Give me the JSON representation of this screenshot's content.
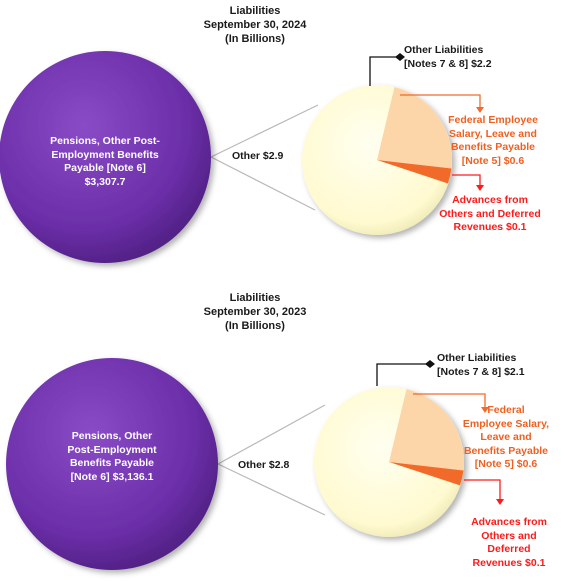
{
  "colors": {
    "purple": "#6b2ea8",
    "cream": "#fffdd8",
    "peach": "#fcd5a8",
    "orange": "#f26a2a",
    "red": "#ff1a1a",
    "connector_line": "#b8b8b8"
  },
  "chart_data": [
    {
      "type": "pie",
      "title": "Liabilities",
      "subtitle": "September 30, 2024",
      "unit_note": "(In Billions)",
      "main_slice": {
        "label_line1": "Pensions, Other Post-",
        "label_line2": "Employment Benefits",
        "label_line3": "Payable [Note 6]",
        "label_line4": "$3,307.7",
        "value": 3307.7
      },
      "other_label": "Other $2.9",
      "other_value": 2.9,
      "slices": [
        {
          "name": "Other Liabilities [Notes 7 & 8]",
          "value": 2.2,
          "line1": "Other Liabilities",
          "line2": "[Notes 7 & 8] $2.2"
        },
        {
          "name": "Federal Employee Salary, Leave and Benefits Payable [Note 5]",
          "value": 0.6,
          "line1": "Federal Employee",
          "line2": "Salary, Leave and",
          "line3": "Benefits Payable",
          "line4": "[Note 5] $0.6"
        },
        {
          "name": "Advances from Others and Deferred Revenues",
          "value": 0.1,
          "line1": "Advances from",
          "line2": "Others and Deferred",
          "line3": "Revenues $0.1"
        }
      ]
    },
    {
      "type": "pie",
      "title": "Liabilities",
      "subtitle": "September 30, 2023",
      "unit_note": "(In Billions)",
      "main_slice": {
        "label_line1": "Pensions, Other",
        "label_line2": "Post-Employment",
        "label_line3": "Benefits Payable",
        "label_line4": "[Note 6] $3,136.1",
        "value": 3136.1
      },
      "other_label": "Other $2.8",
      "other_value": 2.8,
      "slices": [
        {
          "name": "Other Liabilities [Notes 7 & 8]",
          "value": 2.1,
          "line1": "Other Liabilities",
          "line2": "[Notes 7 & 8] $2.1"
        },
        {
          "name": "Federal Employee Salary, Leave and Benefits Payable [Note 5]",
          "value": 0.6,
          "line1": "Federal",
          "line2": "Employee Salary,",
          "line3": "Leave and",
          "line4": "Benefits Payable",
          "line5": "[Note 5] $0.6"
        },
        {
          "name": "Advances from Others and Deferred Revenues",
          "value": 0.1,
          "line1": "Advances from",
          "line2": "Others and",
          "line3": "Deferred",
          "line4": "Revenues $0.1"
        }
      ]
    }
  ]
}
